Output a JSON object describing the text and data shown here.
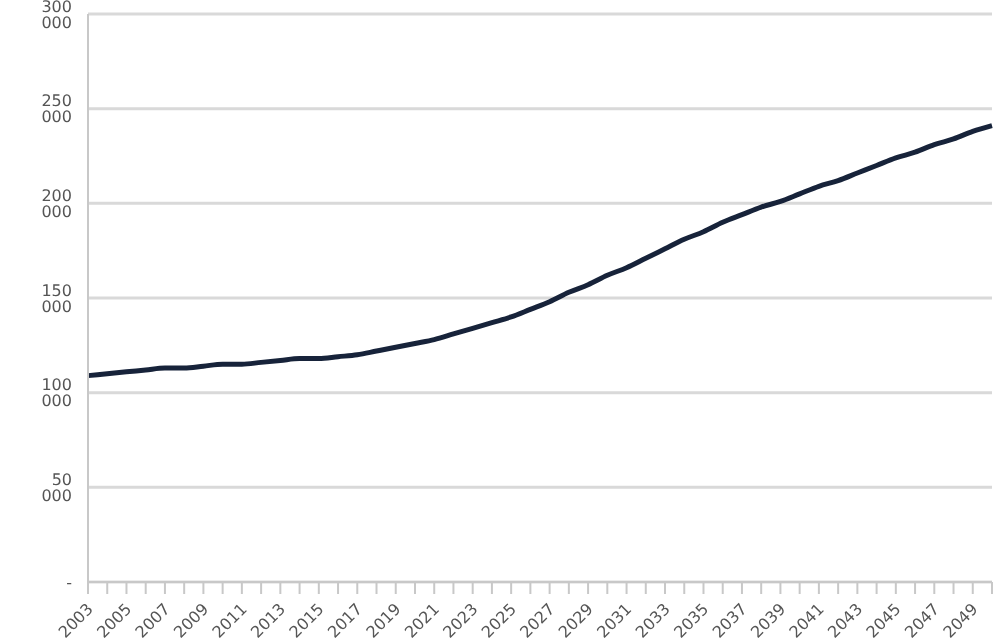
{
  "chart_data": {
    "type": "line",
    "categories": [
      "2003",
      null,
      "2005",
      null,
      "2007",
      null,
      "2009",
      null,
      "2011",
      null,
      "2013",
      null,
      "2015",
      null,
      "2017",
      null,
      "2019",
      null,
      "2021",
      null,
      "2023",
      null,
      "2025",
      null,
      "2027",
      null,
      "2029",
      null,
      "2031",
      null,
      "2033",
      null,
      "2035",
      null,
      "2037",
      null,
      "2039",
      null,
      "2041",
      null,
      "2043",
      null,
      "2045",
      null,
      "2047",
      null,
      "2049",
      null
    ],
    "series": [
      {
        "color": "#17233a",
        "values": [
          109000,
          110000,
          111000,
          112000,
          113000,
          113000,
          114000,
          115000,
          115000,
          116000,
          117000,
          118000,
          118000,
          119000,
          120000,
          122000,
          124000,
          126000,
          128000,
          131000,
          134000,
          137000,
          140000,
          144000,
          148000,
          153000,
          157000,
          162000,
          166000,
          171000,
          176000,
          181000,
          185000,
          190000,
          194000,
          198000,
          201000,
          205000,
          209000,
          212000,
          216000,
          220000,
          224000,
          227000,
          231000,
          234000,
          238000,
          241000
        ]
      }
    ],
    "ylim": [
      0,
      300000
    ],
    "yticks": [
      {
        "value": 0,
        "label": "-"
      },
      {
        "value": 50000,
        "label": "50 000"
      },
      {
        "value": 100000,
        "label": "100 000"
      },
      {
        "value": 150000,
        "label": "150 000"
      },
      {
        "value": 200000,
        "label": "200 000"
      },
      {
        "value": 250000,
        "label": "250 000"
      },
      {
        "value": 300000,
        "label": "300 000"
      }
    ],
    "grid": "y",
    "legend": false,
    "marker": "none",
    "line_style": "solid"
  }
}
